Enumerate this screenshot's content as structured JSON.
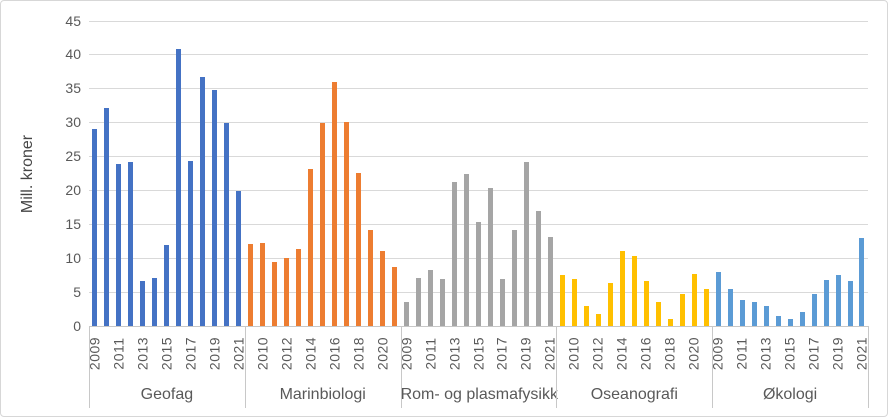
{
  "chart_data": {
    "type": "bar",
    "title": "",
    "xlabel": "",
    "ylabel": "Mill. kroner",
    "ylim": [
      0,
      45
    ],
    "yticks": [
      0,
      5,
      10,
      15,
      20,
      25,
      30,
      35,
      40,
      45
    ],
    "grid": true,
    "legend_position": "none",
    "groups": [
      {
        "label": "Geofag",
        "color": "#4472C4",
        "tick_labels": [
          "2009",
          "",
          "2011",
          "",
          "2013",
          "",
          "2015",
          "",
          "2017",
          "",
          "2019",
          "",
          "2021"
        ],
        "values": [
          29.0,
          32.1,
          23.9,
          24.2,
          6.7,
          7.1,
          12.0,
          40.8,
          24.4,
          36.8,
          34.8,
          30.0,
          19.9
        ]
      },
      {
        "label": "Marinbiologi",
        "color": "#ED7D31",
        "tick_labels": [
          "",
          "2010",
          "",
          "2012",
          "",
          "2014",
          "",
          "2016",
          "",
          "2018",
          "",
          "2020",
          ""
        ],
        "values": [
          12.1,
          12.3,
          9.5,
          10.0,
          11.3,
          23.1,
          29.9,
          36.0,
          30.1,
          22.6,
          14.1,
          11.1,
          8.7
        ]
      },
      {
        "label": "Rom- og plasmafysikk",
        "color": "#A5A5A5",
        "tick_labels": [
          "2009",
          "",
          "2011",
          "",
          "2013",
          "",
          "2015",
          "",
          "2017",
          "",
          "2019",
          "",
          "2021"
        ],
        "values": [
          3.5,
          7.1,
          8.2,
          6.9,
          21.2,
          22.4,
          15.4,
          20.3,
          6.9,
          14.1,
          24.2,
          16.9,
          13.1
        ]
      },
      {
        "label": "Oseanografi",
        "color": "#FFC000",
        "tick_labels": [
          "",
          "2010",
          "",
          "2012",
          "",
          "2014",
          "",
          "2016",
          "",
          "2018",
          "",
          "2020",
          ""
        ],
        "values": [
          7.6,
          6.9,
          2.9,
          1.7,
          6.4,
          11.0,
          10.3,
          6.7,
          3.5,
          1.0,
          4.7,
          7.7,
          5.5
        ]
      },
      {
        "label": "Økologi",
        "color": "#5B9BD5",
        "tick_labels": [
          "2009",
          "",
          "2011",
          "",
          "2013",
          "",
          "2015",
          "",
          "2017",
          "",
          "2019",
          "",
          "2021"
        ],
        "values": [
          8.0,
          5.4,
          3.9,
          3.6,
          3.0,
          1.5,
          1.1,
          2.0,
          4.7,
          6.8,
          7.6,
          6.7,
          13.0
        ]
      }
    ]
  },
  "colors": {
    "gridline": "#D9D9D9",
    "axis_line": "#C8C8C8",
    "axis_text": "#595959",
    "frame_border": "#D7D7D7",
    "background": "#FFFFFF"
  }
}
